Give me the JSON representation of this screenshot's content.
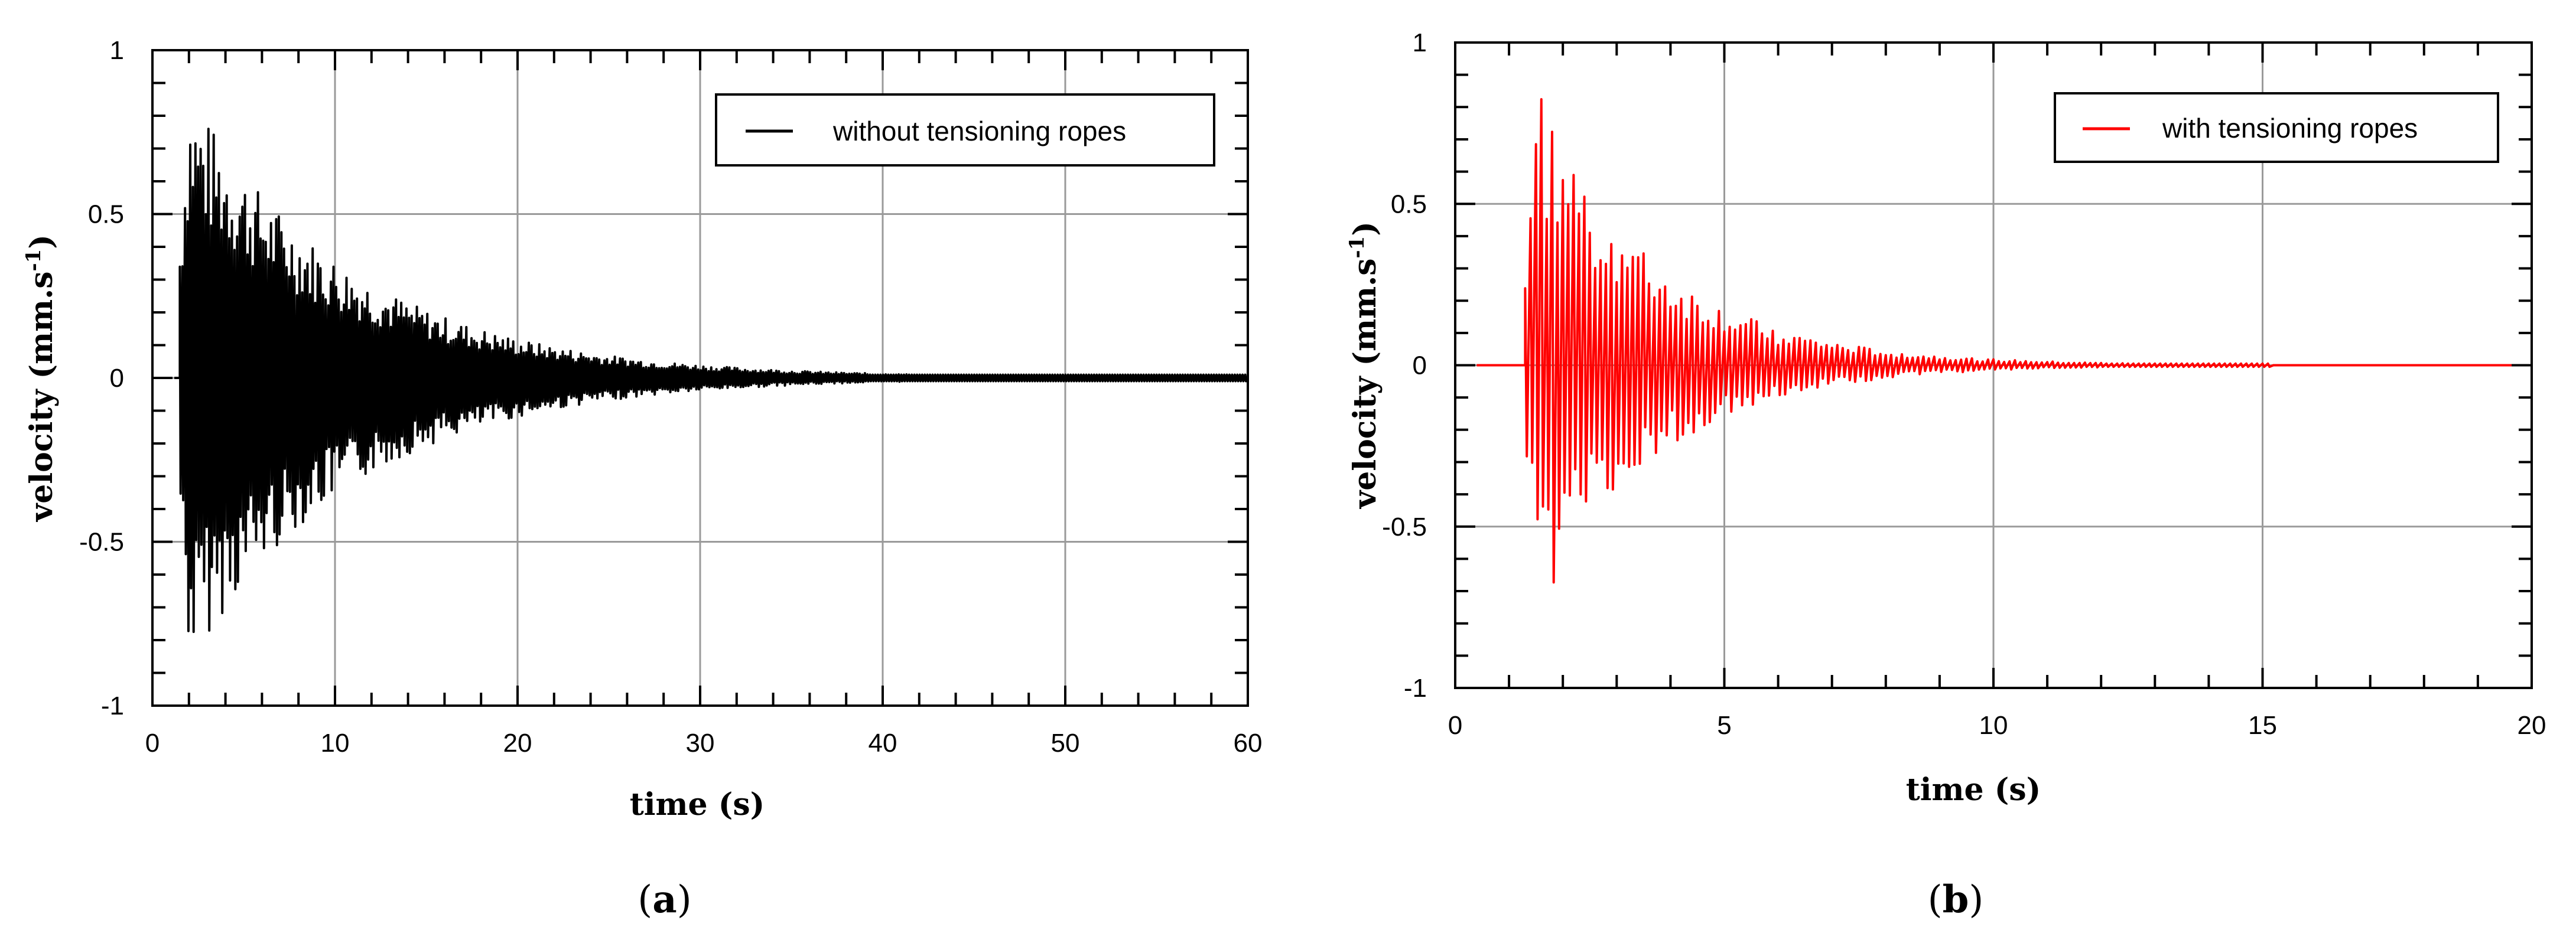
{
  "chart_data": [
    {
      "id": "a",
      "type": "line",
      "caption_letter": "a",
      "xlabel": "time (s)",
      "ylabel": "velocity (mm.s",
      "ylabel_sup": "-1",
      "ylabel_tail": ")",
      "xlim": [
        0,
        60
      ],
      "ylim": [
        -1,
        1
      ],
      "xticks": [
        "0",
        "10",
        "20",
        "30",
        "40",
        "50",
        "60"
      ],
      "xtick_values": [
        0,
        10,
        20,
        30,
        40,
        50,
        60
      ],
      "yticks": [
        "1",
        "0.5",
        "0",
        "-0.5",
        "-1"
      ],
      "ytick_values": [
        1,
        0.5,
        0,
        -0.5,
        -1
      ],
      "grid": true,
      "legend_position": "top-right",
      "series": [
        {
          "name": "without tensioning ropes",
          "color": "#000000",
          "signal": {
            "kind": "decaying-oscillation",
            "onset_s": 1.5,
            "peak_s": 2.0,
            "peak_positive": 0.88,
            "peak_negative": -0.88,
            "decay_time_constant_s": 9,
            "end_s": 60,
            "floor_amplitude": 0.01
          },
          "envelope_points": [
            {
              "x": 2,
              "y_max": 0.88,
              "y_min": -0.88
            },
            {
              "x": 3,
              "y_max": 0.62,
              "y_min": -0.63
            },
            {
              "x": 5,
              "y_max": 0.45,
              "y_min": -0.45
            },
            {
              "x": 10,
              "y_max": 0.2,
              "y_min": -0.2
            },
            {
              "x": 20,
              "y_max": 0.09,
              "y_min": -0.09
            },
            {
              "x": 30,
              "y_max": 0.04,
              "y_min": -0.04
            },
            {
              "x": 40,
              "y_max": 0.02,
              "y_min": -0.02
            },
            {
              "x": 60,
              "y_max": 0.01,
              "y_min": -0.01
            }
          ]
        }
      ]
    },
    {
      "id": "b",
      "type": "line",
      "caption_letter": "b",
      "xlabel": "time (s)",
      "ylabel": "velocity (mm.s",
      "ylabel_sup": "-1",
      "ylabel_tail": ")",
      "xlim": [
        0,
        20
      ],
      "ylim": [
        -1,
        1
      ],
      "xticks": [
        "0",
        "5",
        "10",
        "15",
        "20"
      ],
      "xtick_values": [
        0,
        5,
        10,
        15,
        20
      ],
      "yticks": [
        "1",
        "0.5",
        "0",
        "-0.5",
        "-1"
      ],
      "ytick_values": [
        1,
        0.5,
        0,
        -0.5,
        -1
      ],
      "grid": true,
      "legend_position": "top-right",
      "series": [
        {
          "name": "with tensioning ropes",
          "color": "#ff0000",
          "signal": {
            "kind": "decaying-oscillation",
            "onset_s": 1.3,
            "peak_s": 1.55,
            "peak_positive": 0.86,
            "peak_negative": -0.76,
            "decay_time_constant_s": 2.2,
            "end_s": 15.2,
            "floor_amplitude": 0.005
          },
          "envelope_points": [
            {
              "x": 1.3,
              "y_max": 0.43,
              "y_min": -0.76
            },
            {
              "x": 1.55,
              "y_max": 0.86,
              "y_min": -0.62
            },
            {
              "x": 2.0,
              "y_max": 0.46,
              "y_min": -0.47
            },
            {
              "x": 3.0,
              "y_max": 0.25,
              "y_min": -0.35
            },
            {
              "x": 5.0,
              "y_max": 0.1,
              "y_min": -0.12
            },
            {
              "x": 10.0,
              "y_max": 0.02,
              "y_min": -0.02
            },
            {
              "x": 15.0,
              "y_max": 0.01,
              "y_min": -0.01
            }
          ]
        }
      ]
    }
  ]
}
